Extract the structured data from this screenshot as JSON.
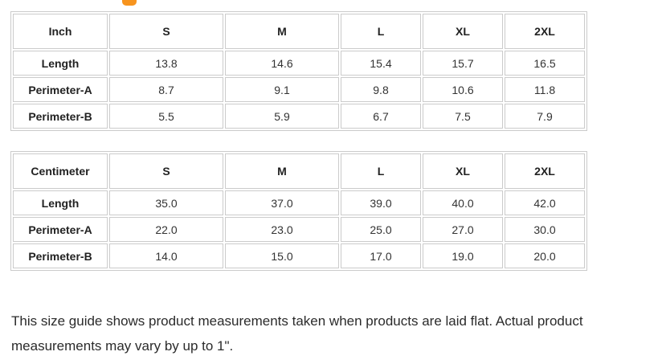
{
  "page": {
    "background_color": "#ffffff",
    "accent_color": "#f7941e",
    "table_border_color": "#cbcbcb",
    "heading_fragment": "clipped-orange-heading-text"
  },
  "size_guide": {
    "tables": [
      {
        "unit_header": "Inch",
        "columns": [
          "S",
          "M",
          "L",
          "XL",
          "2XL"
        ],
        "rows": [
          {
            "label": "Length",
            "values": [
              "13.8",
              "14.6",
              "15.4",
              "15.7",
              "16.5"
            ]
          },
          {
            "label": "Perimeter-A",
            "values": [
              "8.7",
              "9.1",
              "9.8",
              "10.6",
              "11.8"
            ]
          },
          {
            "label": "Perimeter-B",
            "values": [
              "5.5",
              "5.9",
              "6.7",
              "7.5",
              "7.9"
            ]
          }
        ]
      },
      {
        "unit_header": "Centimeter",
        "columns": [
          "S",
          "M",
          "L",
          "XL",
          "2XL"
        ],
        "rows": [
          {
            "label": "Length",
            "values": [
              "35.0",
              "37.0",
              "39.0",
              "40.0",
              "42.0"
            ]
          },
          {
            "label": "Perimeter-A",
            "values": [
              "22.0",
              "23.0",
              "25.0",
              "27.0",
              "30.0"
            ]
          },
          {
            "label": "Perimeter-B",
            "values": [
              "14.0",
              "15.0",
              "17.0",
              "19.0",
              "20.0"
            ]
          }
        ]
      }
    ],
    "note_lines": [
      "This size guide shows product measurements taken when products are laid flat. Actual product",
      "measurements may vary by up to 1\"."
    ]
  }
}
